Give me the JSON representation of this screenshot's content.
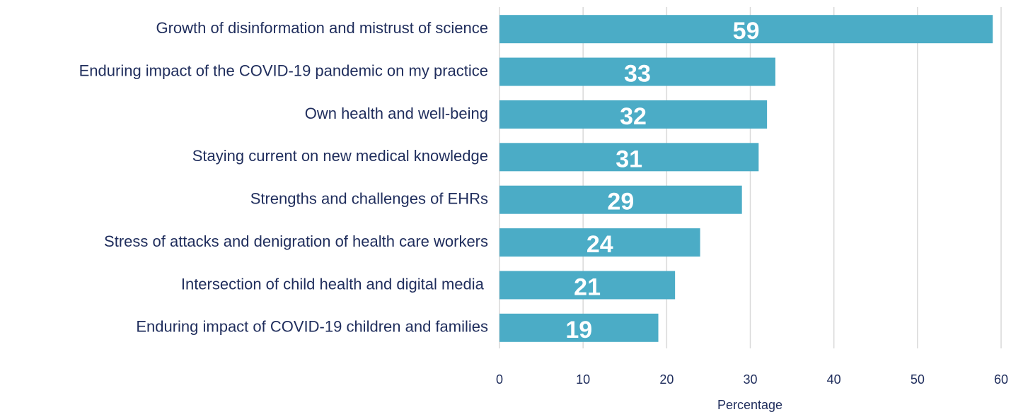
{
  "chart_data": {
    "type": "bar",
    "orientation": "horizontal",
    "categories": [
      "Growth of disinformation and mistrust of science",
      "Enduring impact of the COVID-19 pandemic on my practice",
      "Own health and well-being",
      "Staying current on new medical knowledge",
      "Strengths and challenges of EHRs",
      "Stress of attacks and denigration of health care workers",
      "Intersection of child health and digital media ",
      "Enduring impact of COVID-19 children and families"
    ],
    "values": [
      59,
      33,
      32,
      31,
      29,
      24,
      21,
      19
    ],
    "color": "#4bacc6",
    "x_label": "Percentage",
    "xlim": [
      0,
      60
    ],
    "xticks": [
      0,
      10,
      20,
      30,
      40,
      50,
      60
    ],
    "grid": true
  }
}
